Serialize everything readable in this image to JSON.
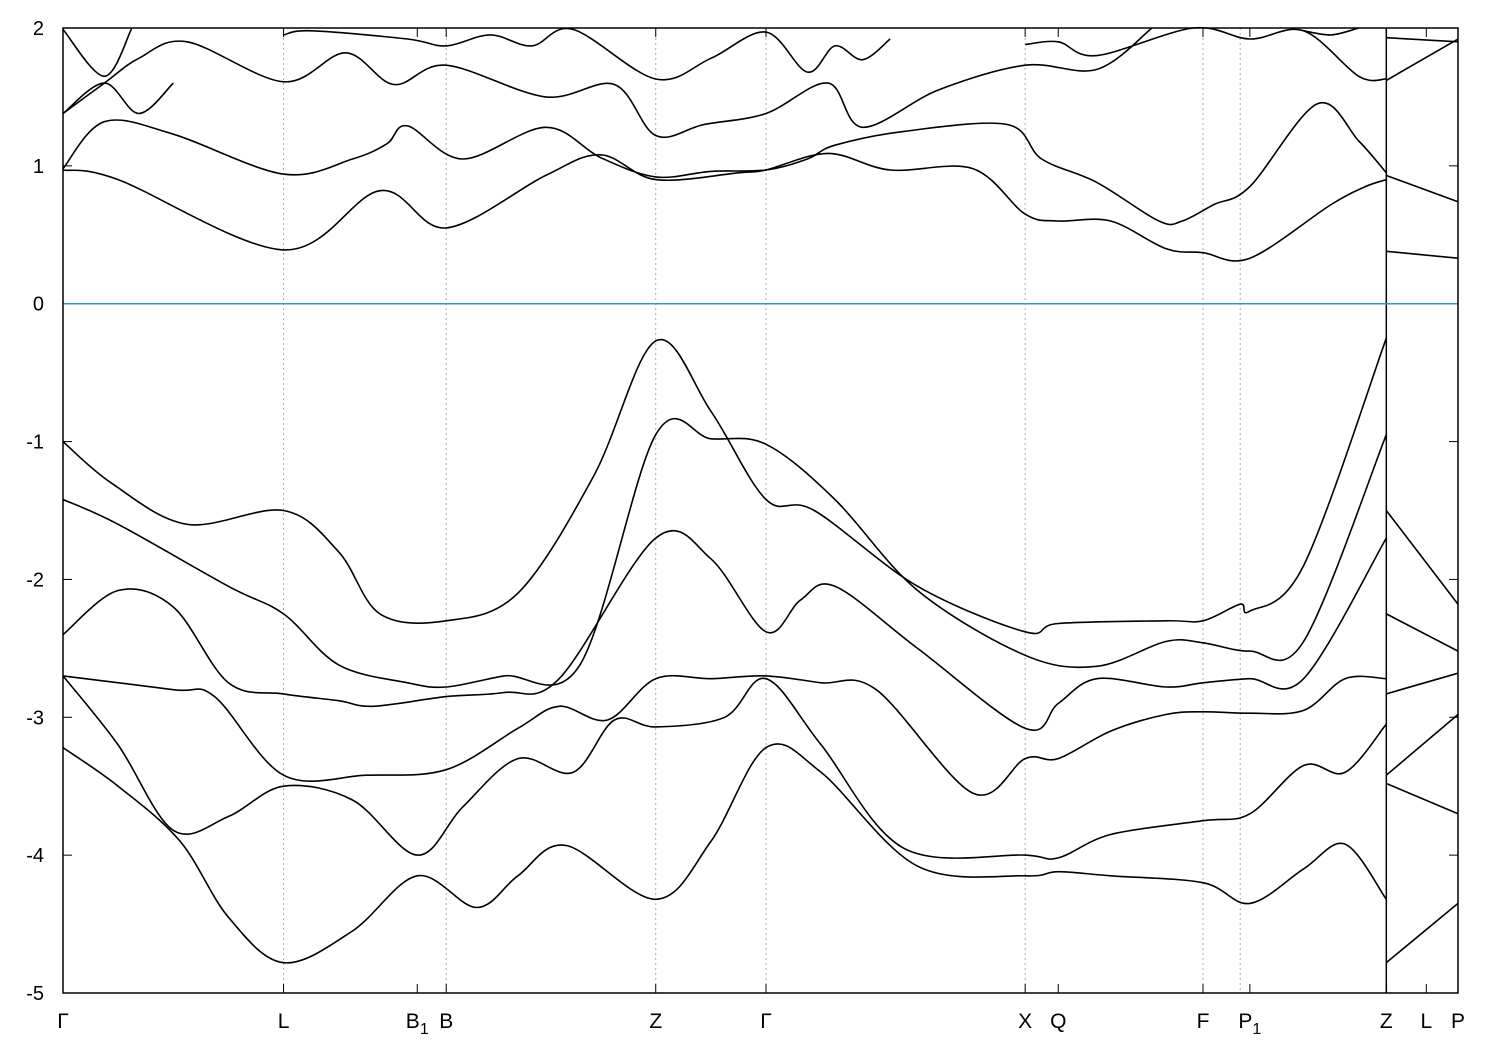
{
  "chart_data": {
    "type": "line",
    "title": "",
    "xlabel": "",
    "ylabel": "",
    "ylim": [
      -5,
      2
    ],
    "xlim": [
      0,
      10.12
    ],
    "grid": "vertical dotted lines at high-symmetry points",
    "y_ticks": [
      2,
      1,
      0,
      -1,
      -2,
      -3,
      -4,
      -5
    ],
    "y_tick_labels": [
      "2",
      "1",
      "0",
      "-1",
      "-2",
      "-3",
      "-4",
      "-5"
    ],
    "x_ticks": [
      {
        "label": "Γ",
        "x": 0.0,
        "sub": ""
      },
      {
        "label": "L",
        "x": 1.6,
        "sub": ""
      },
      {
        "label": "B",
        "x": 2.57,
        "sub": "1"
      },
      {
        "label": "B",
        "x": 2.78,
        "sub": ""
      },
      {
        "label": "Z",
        "x": 4.3,
        "sub": ""
      },
      {
        "label": "Γ",
        "x": 5.1,
        "sub": ""
      },
      {
        "label": "X",
        "x": 6.98,
        "sub": ""
      },
      {
        "label": "Q",
        "x": 7.22,
        "sub": ""
      },
      {
        "label": "F",
        "x": 8.27,
        "sub": ""
      },
      {
        "label": "P",
        "x": 8.61,
        "sub": "1"
      },
      {
        "label": "Z",
        "x": 9.6,
        "sub": ""
      },
      {
        "label": "L",
        "x": 9.89,
        "sub": ""
      },
      {
        "label": "P",
        "x": 10.12,
        "sub": ""
      }
    ],
    "vlines": [
      1.6,
      2.78,
      4.3,
      5.1,
      6.98,
      8.27,
      8.54,
      9.6
    ],
    "fermi_level": {
      "y": 0,
      "color": "#3399bb"
    },
    "line_color": "#000000",
    "segment_break": 9.6,
    "series": [
      {
        "values": [
          [
            0,
            0.98
          ],
          [
            0.3,
            1.32
          ],
          [
            0.8,
            1.23
          ],
          [
            1.6,
            0.94
          ],
          [
            2.1,
            1.05
          ],
          [
            2.35,
            1.16
          ],
          [
            2.5,
            1.29
          ],
          [
            2.9,
            1.05
          ],
          [
            3.5,
            1.28
          ],
          [
            3.9,
            1.06
          ],
          [
            4.3,
            0.92
          ],
          [
            4.7,
            0.96
          ],
          [
            5.1,
            0.97
          ],
          [
            5.4,
            1.05
          ],
          [
            5.6,
            1.15
          ],
          [
            6.1,
            1.25
          ],
          [
            6.85,
            1.3
          ],
          [
            7.1,
            1.05
          ],
          [
            7.5,
            0.88
          ],
          [
            7.95,
            0.6
          ],
          [
            8.12,
            0.6
          ],
          [
            8.35,
            0.72
          ],
          [
            8.61,
            0.85
          ],
          [
            9.1,
            1.45
          ],
          [
            9.4,
            1.18
          ],
          [
            9.6,
            0.95
          ]
        ]
      },
      {
        "values": [
          [
            0,
            0.97
          ],
          [
            0.4,
            0.9
          ],
          [
            1.6,
            0.39
          ],
          [
            2.3,
            0.82
          ],
          [
            2.78,
            0.55
          ],
          [
            3.5,
            0.93
          ],
          [
            3.9,
            1.08
          ],
          [
            4.3,
            0.9
          ],
          [
            4.9,
            0.95
          ],
          [
            5.1,
            0.97
          ],
          [
            5.55,
            1.09
          ],
          [
            6.0,
            0.97
          ],
          [
            6.6,
            0.98
          ],
          [
            6.98,
            0.65
          ],
          [
            7.22,
            0.6
          ],
          [
            7.6,
            0.6
          ],
          [
            8.0,
            0.4
          ],
          [
            8.27,
            0.37
          ],
          [
            8.61,
            0.33
          ],
          [
            9.2,
            0.72
          ],
          [
            9.45,
            0.85
          ],
          [
            9.6,
            0.9
          ]
        ]
      },
      {
        "values": [
          [
            0,
            1.38
          ],
          [
            0.3,
            1.6
          ],
          [
            0.55,
            1.78
          ],
          [
            0.9,
            1.9
          ],
          [
            1.6,
            1.61
          ],
          [
            2.05,
            1.82
          ],
          [
            2.4,
            1.59
          ],
          [
            2.78,
            1.73
          ],
          [
            3.5,
            1.5
          ],
          [
            4.0,
            1.59
          ],
          [
            4.3,
            1.22
          ],
          [
            4.65,
            1.3
          ],
          [
            5.1,
            1.38
          ],
          [
            5.55,
            1.6
          ],
          [
            5.8,
            1.28
          ],
          [
            6.35,
            1.55
          ],
          [
            6.98,
            1.73
          ],
          [
            7.5,
            1.7
          ],
          [
            7.9,
            2.0
          ]
        ]
      },
      {
        "values": [
          [
            0,
            1.99
          ],
          [
            0.3,
            1.65
          ],
          [
            0.5,
            2.0
          ]
        ]
      },
      {
        "values": [
          [
            0,
            1.38
          ],
          [
            0.3,
            1.6
          ],
          [
            0.55,
            1.38
          ],
          [
            0.8,
            1.6
          ]
        ]
      },
      {
        "values": [
          [
            1.6,
            1.95
          ],
          [
            1.8,
            1.98
          ],
          [
            2.5,
            1.92
          ],
          [
            2.78,
            1.87
          ],
          [
            3.1,
            1.95
          ],
          [
            3.4,
            1.87
          ],
          [
            3.7,
            1.99
          ],
          [
            4.3,
            1.63
          ],
          [
            4.7,
            1.78
          ],
          [
            5.1,
            1.97
          ],
          [
            5.4,
            1.68
          ],
          [
            5.6,
            1.87
          ],
          [
            5.8,
            1.77
          ],
          [
            6.0,
            1.92
          ]
        ]
      },
      {
        "values": [
          [
            6.98,
            1.88
          ],
          [
            7.22,
            1.9
          ],
          [
            7.5,
            1.8
          ],
          [
            8.2,
            2.0
          ],
          [
            8.61,
            1.92
          ],
          [
            9.0,
            1.98
          ],
          [
            9.4,
            1.65
          ],
          [
            9.6,
            1.63
          ]
        ]
      },
      {
        "values": [
          [
            9.0,
            1.98
          ],
          [
            9.2,
            1.95
          ],
          [
            9.4,
            2.0
          ]
        ]
      },
      {
        "values": [
          [
            0,
            -1.0
          ],
          [
            0.35,
            -1.3
          ],
          [
            0.9,
            -1.6
          ],
          [
            1.6,
            -1.5
          ],
          [
            2.0,
            -1.8
          ],
          [
            2.3,
            -2.25
          ],
          [
            2.78,
            -2.3
          ],
          [
            3.3,
            -2.1
          ],
          [
            3.85,
            -1.25
          ],
          [
            4.3,
            -0.27
          ],
          [
            4.7,
            -0.78
          ],
          [
            5.1,
            -1.42
          ],
          [
            5.45,
            -1.5
          ],
          [
            6.2,
            -2.05
          ],
          [
            6.98,
            -2.38
          ],
          [
            7.22,
            -2.32
          ],
          [
            8.0,
            -2.3
          ],
          [
            8.27,
            -2.3
          ],
          [
            8.54,
            -2.18
          ],
          [
            8.61,
            -2.23
          ],
          [
            9.0,
            -1.9
          ],
          [
            9.6,
            -0.25
          ]
        ]
      },
      {
        "values": [
          [
            0,
            -1.42
          ],
          [
            0.4,
            -1.6
          ],
          [
            1.2,
            -2.05
          ],
          [
            1.6,
            -2.25
          ],
          [
            2.0,
            -2.62
          ],
          [
            2.5,
            -2.75
          ],
          [
            2.78,
            -2.78
          ],
          [
            3.2,
            -2.7
          ],
          [
            3.75,
            -2.62
          ],
          [
            4.3,
            -0.95
          ],
          [
            4.7,
            -0.98
          ],
          [
            5.1,
            -1.02
          ],
          [
            5.6,
            -1.42
          ],
          [
            6.2,
            -2.08
          ],
          [
            6.98,
            -2.55
          ],
          [
            7.5,
            -2.63
          ],
          [
            8.0,
            -2.45
          ],
          [
            8.27,
            -2.46
          ],
          [
            8.61,
            -2.52
          ],
          [
            9.0,
            -2.45
          ],
          [
            9.6,
            -0.95
          ]
        ]
      },
      {
        "values": [
          [
            0,
            -2.4
          ],
          [
            0.4,
            -2.08
          ],
          [
            0.8,
            -2.2
          ],
          [
            1.2,
            -2.75
          ],
          [
            1.6,
            -2.83
          ],
          [
            2.0,
            -2.88
          ],
          [
            2.25,
            -2.92
          ],
          [
            2.78,
            -2.85
          ],
          [
            3.2,
            -2.82
          ],
          [
            3.6,
            -2.72
          ],
          [
            4.3,
            -1.7
          ],
          [
            4.7,
            -1.85
          ],
          [
            5.1,
            -2.38
          ],
          [
            5.35,
            -2.15
          ],
          [
            5.6,
            -2.05
          ],
          [
            6.2,
            -2.5
          ],
          [
            6.98,
            -3.08
          ],
          [
            7.22,
            -2.9
          ],
          [
            7.5,
            -2.72
          ],
          [
            8.0,
            -2.78
          ],
          [
            8.27,
            -2.75
          ],
          [
            8.61,
            -2.72
          ],
          [
            9.0,
            -2.72
          ],
          [
            9.6,
            -1.7
          ]
        ]
      },
      {
        "values": [
          [
            0,
            -2.7
          ],
          [
            0.8,
            -2.8
          ],
          [
            1.1,
            -2.85
          ],
          [
            1.6,
            -3.42
          ],
          [
            2.2,
            -3.42
          ],
          [
            2.78,
            -3.38
          ],
          [
            3.3,
            -3.08
          ],
          [
            3.6,
            -2.92
          ],
          [
            3.95,
            -3.02
          ],
          [
            4.3,
            -2.72
          ],
          [
            4.7,
            -2.72
          ],
          [
            5.1,
            -2.7
          ],
          [
            5.5,
            -2.75
          ],
          [
            5.9,
            -2.8
          ],
          [
            6.6,
            -3.55
          ],
          [
            6.98,
            -3.3
          ],
          [
            7.22,
            -3.3
          ],
          [
            7.6,
            -3.1
          ],
          [
            8.0,
            -2.98
          ],
          [
            8.27,
            -2.96
          ],
          [
            8.61,
            -2.97
          ],
          [
            9.0,
            -2.95
          ],
          [
            9.3,
            -2.72
          ],
          [
            9.6,
            -2.72
          ]
        ]
      },
      {
        "values": [
          [
            0,
            -2.7
          ],
          [
            0.4,
            -3.2
          ],
          [
            0.8,
            -3.82
          ],
          [
            1.2,
            -3.72
          ],
          [
            1.6,
            -3.5
          ],
          [
            2.1,
            -3.6
          ],
          [
            2.57,
            -4.0
          ],
          [
            2.9,
            -3.65
          ],
          [
            3.3,
            -3.3
          ],
          [
            3.7,
            -3.4
          ],
          [
            4.0,
            -3.02
          ],
          [
            4.3,
            -3.07
          ],
          [
            4.8,
            -3.0
          ],
          [
            5.1,
            -2.72
          ],
          [
            5.5,
            -3.2
          ],
          [
            6.1,
            -3.95
          ],
          [
            6.98,
            -4.0
          ],
          [
            7.22,
            -4.02
          ],
          [
            7.6,
            -3.85
          ],
          [
            8.27,
            -3.75
          ],
          [
            8.61,
            -3.7
          ],
          [
            9.0,
            -3.35
          ],
          [
            9.3,
            -3.4
          ],
          [
            9.6,
            -3.05
          ]
        ]
      },
      {
        "values": [
          [
            0,
            -3.22
          ],
          [
            0.4,
            -3.5
          ],
          [
            0.85,
            -3.9
          ],
          [
            1.2,
            -4.45
          ],
          [
            1.6,
            -4.78
          ],
          [
            2.1,
            -4.55
          ],
          [
            2.57,
            -4.15
          ],
          [
            3.0,
            -4.38
          ],
          [
            3.3,
            -4.15
          ],
          [
            3.65,
            -3.93
          ],
          [
            4.3,
            -4.32
          ],
          [
            4.7,
            -3.9
          ],
          [
            5.1,
            -3.22
          ],
          [
            5.5,
            -3.4
          ],
          [
            6.2,
            -4.08
          ],
          [
            6.98,
            -4.15
          ],
          [
            7.22,
            -4.12
          ],
          [
            7.6,
            -4.15
          ],
          [
            8.27,
            -4.2
          ],
          [
            8.61,
            -4.35
          ],
          [
            9.0,
            -4.1
          ],
          [
            9.3,
            -3.92
          ],
          [
            9.6,
            -4.32
          ]
        ]
      },
      {
        "values": [
          [
            9.6,
            0.93
          ],
          [
            10.12,
            0.74
          ]
        ]
      },
      {
        "values": [
          [
            9.6,
            0.38
          ],
          [
            10.12,
            0.33
          ]
        ]
      },
      {
        "values": [
          [
            9.6,
            1.93
          ],
          [
            10.12,
            1.9
          ]
        ]
      },
      {
        "values": [
          [
            9.6,
            1.62
          ],
          [
            10.12,
            1.92
          ]
        ]
      },
      {
        "values": [
          [
            9.6,
            -1.5
          ],
          [
            10.12,
            -2.18
          ]
        ]
      },
      {
        "values": [
          [
            9.6,
            -2.25
          ],
          [
            10.12,
            -2.52
          ]
        ]
      },
      {
        "values": [
          [
            9.6,
            -2.83
          ],
          [
            10.12,
            -2.68
          ]
        ]
      },
      {
        "values": [
          [
            9.6,
            -3.42
          ],
          [
            10.12,
            -2.98
          ]
        ]
      },
      {
        "values": [
          [
            9.6,
            -3.48
          ],
          [
            10.12,
            -3.7
          ]
        ]
      },
      {
        "values": [
          [
            9.6,
            -4.78
          ],
          [
            10.12,
            -4.35
          ]
        ]
      }
    ]
  }
}
